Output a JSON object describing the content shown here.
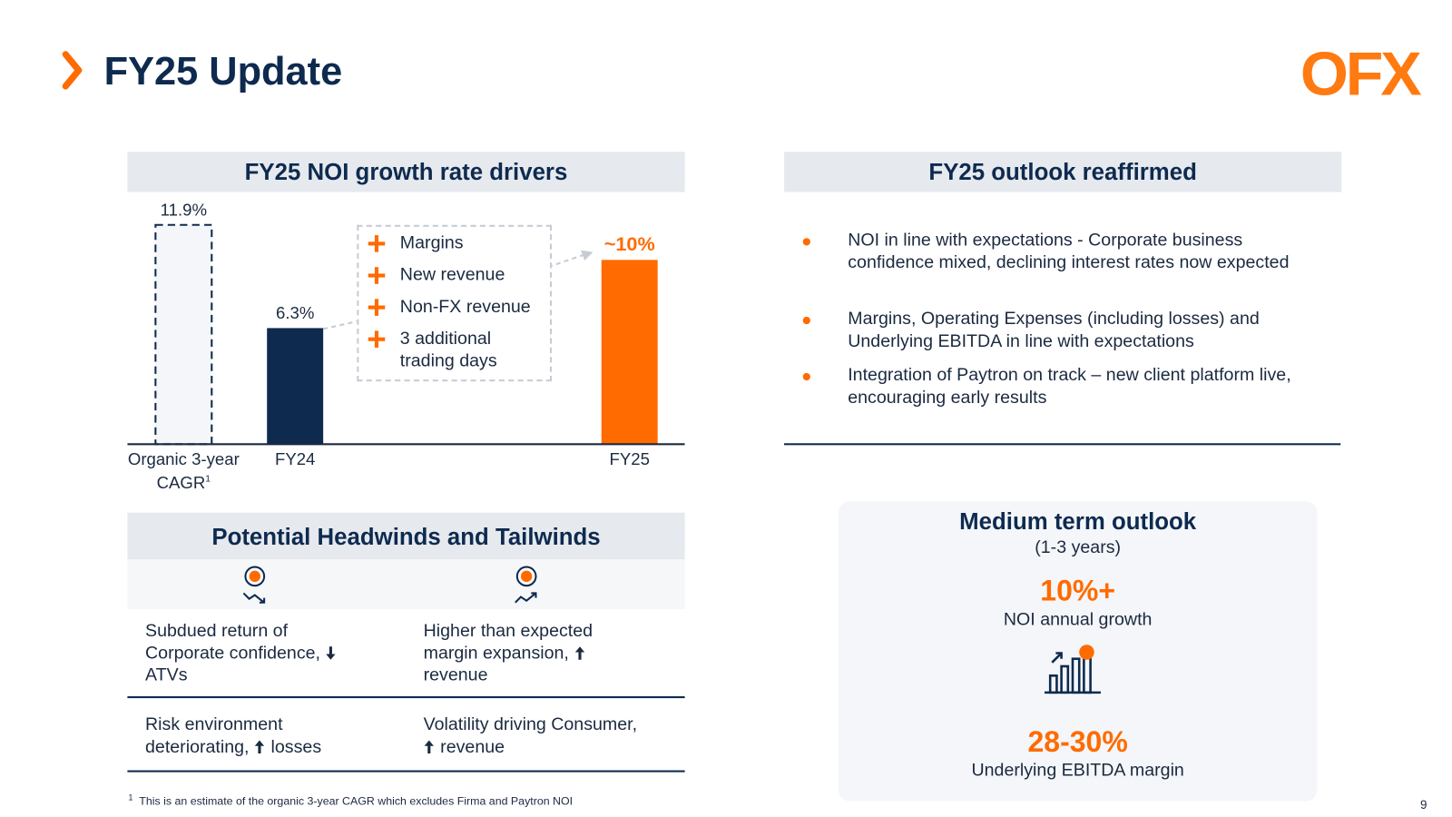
{
  "header": {
    "title": "FY25 Update",
    "logo": "OFX"
  },
  "chart_data": {
    "type": "bar",
    "title": "FY25 NOI growth rate drivers",
    "categories": [
      "Organic 3-year CAGR",
      "FY24",
      "FY25"
    ],
    "category_note": "1",
    "values": [
      11.9,
      6.3,
      10
    ],
    "value_labels": [
      "11.9%",
      "6.3%",
      "~10%"
    ],
    "colors": [
      "#f4f6f9",
      "#0e2a4f",
      "#ff6b00"
    ],
    "styles": [
      "dashed",
      "solid",
      "solid"
    ],
    "value_label_colors": [
      "#1b2a40",
      "#1b2a40",
      "#ff6b00"
    ],
    "drivers": [
      "Margins",
      "New revenue",
      "Non-FX revenue",
      "3 additional trading days"
    ]
  },
  "outlook": {
    "title": "FY25 outlook reaffirmed",
    "bullets": [
      "NOI in line with expectations - Corporate business confidence mixed, declining interest rates now expected",
      "Margins, Operating Expenses (including losses) and Underlying EBITDA in line with expectations",
      "Integration of Paytron on track – new client platform live, encouraging early results"
    ]
  },
  "headwinds": {
    "title": "Potential Headwinds and Tailwinds",
    "rows": [
      [
        {
          "text": "Subdued return of Corporate confidence,",
          "direction": "down",
          "effect": "ATVs"
        },
        {
          "text": "Higher than expected margin expansion,",
          "direction": "up",
          "effect": "revenue"
        }
      ],
      [
        {
          "text": "Risk environment deteriorating,",
          "direction": "up",
          "effect": "losses"
        },
        {
          "text": "Volatility driving Consumer,",
          "direction": "up",
          "effect": "revenue"
        }
      ]
    ]
  },
  "medium_term": {
    "title": "Medium term outlook",
    "subtitle": "(1-3 years)",
    "metrics": [
      {
        "value": "10%+",
        "label": "NOI annual growth"
      },
      {
        "value": "28-30%",
        "label": "Underlying EBITDA margin"
      }
    ]
  },
  "footnote": {
    "marker": "1",
    "text": "This is an estimate of the organic 3-year CAGR which excludes Firma and Paytron NOI"
  },
  "page_number": "9"
}
